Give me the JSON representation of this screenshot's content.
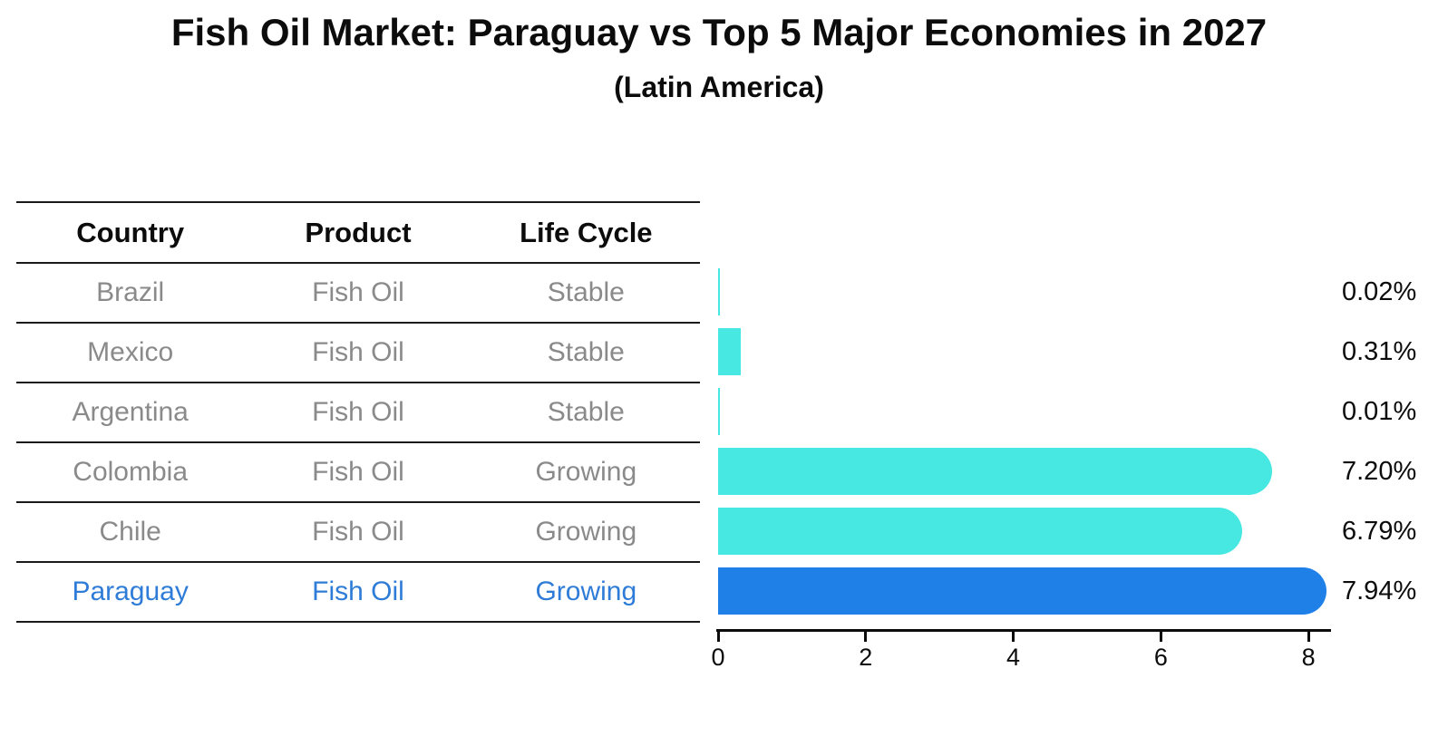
{
  "title": "Fish Oil Market: Paraguay vs Top 5 Major Economies in 2027",
  "subtitle": "(Latin America)",
  "table": {
    "headers": [
      "Country",
      "Product",
      "Life Cycle"
    ],
    "rows": [
      {
        "country": "Brazil",
        "product": "Fish Oil",
        "life_cycle": "Stable",
        "highlighted": false
      },
      {
        "country": "Mexico",
        "product": "Fish Oil",
        "life_cycle": "Stable",
        "highlighted": false
      },
      {
        "country": "Argentina",
        "product": "Fish Oil",
        "life_cycle": "Stable",
        "highlighted": false
      },
      {
        "country": "Colombia",
        "product": "Fish Oil",
        "life_cycle": "Growing",
        "highlighted": false
      },
      {
        "country": "Chile",
        "product": "Fish Oil",
        "life_cycle": "Growing",
        "highlighted": false
      },
      {
        "country": "Paraguay",
        "product": "Fish Oil",
        "life_cycle": "Growing",
        "highlighted": true
      }
    ]
  },
  "chart_data": {
    "type": "bar",
    "orientation": "horizontal",
    "title": "Fish Oil Market: Paraguay vs Top 5 Major Economies in 2027",
    "subtitle": "(Latin America)",
    "categories": [
      "Brazil",
      "Mexico",
      "Argentina",
      "Colombia",
      "Chile",
      "Paraguay"
    ],
    "values": [
      0.02,
      0.31,
      0.01,
      7.2,
      6.79,
      7.94
    ],
    "value_labels": [
      "0.02%",
      "0.31%",
      "0.01%",
      "7.20%",
      "6.79%",
      "7.94%"
    ],
    "xlabel": "",
    "ylabel": "",
    "xlim": [
      0,
      8.33
    ],
    "xticks": [
      0,
      2,
      4,
      6,
      8
    ],
    "grid": false,
    "legend": "none",
    "bar_color": "#47e8e1",
    "highlight_color": "#1f80e8",
    "highlight_index": 5,
    "highlight_bar_style": "dotted-edge",
    "highlight_text_color": "#2e7cd7",
    "row_text_color": "#8a8a8a"
  }
}
